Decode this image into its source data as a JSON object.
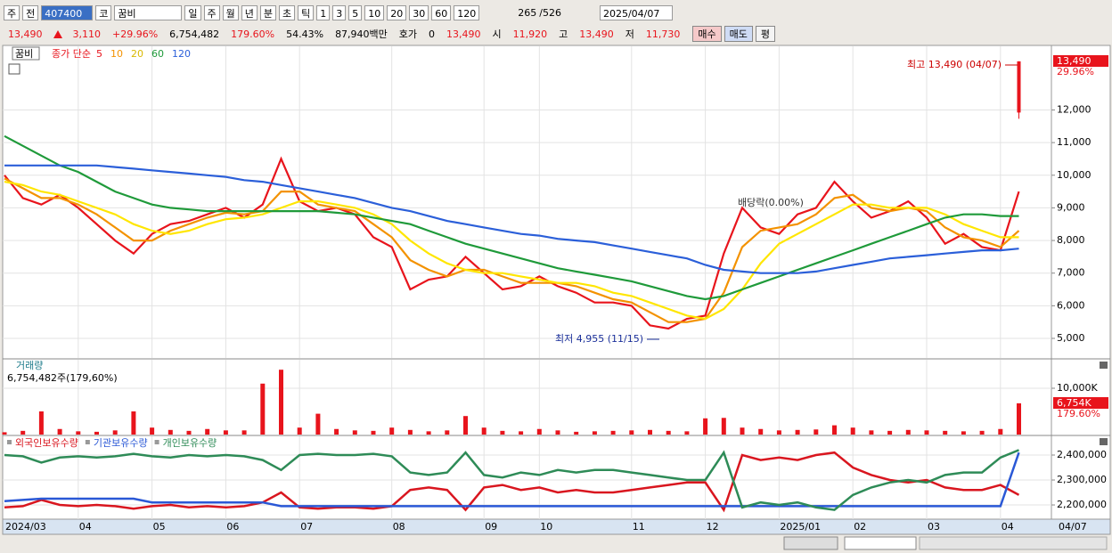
{
  "toolbar": [
    "주",
    "전",
    "407400",
    "코",
    "꿈비",
    "일",
    "주",
    "월",
    "년",
    "분",
    "초",
    "틱",
    "1",
    "3",
    "5",
    "10",
    "20",
    "30",
    "60",
    "120"
  ],
  "counter": [
    "265",
    "/526"
  ],
  "date": "2025/04/07",
  "quote": [
    {
      "text": "13,490",
      "color": "#e8141c"
    },
    {
      "text": "3,110",
      "color": "#e8141c"
    },
    {
      "text": "+29.96%",
      "color": "#e8141c"
    },
    {
      "text": "6,754,482",
      "color": "#000000"
    },
    {
      "text": "179.60%",
      "color": "#e8141c"
    },
    {
      "text": "54.43%",
      "color": "#000000"
    },
    {
      "text": "87,940백만",
      "color": "#000000"
    },
    {
      "text": "호가",
      "color": "#000000"
    },
    {
      "text": "0",
      "color": "#000000"
    },
    {
      "text": "13,490",
      "color": "#e8141c"
    },
    {
      "text": "시",
      "color": "#000000"
    },
    {
      "text": "11,920",
      "color": "#e8141c"
    },
    {
      "text": "고",
      "color": "#000000"
    },
    {
      "text": "13,490",
      "color": "#e8141c"
    },
    {
      "text": "저",
      "color": "#000000"
    },
    {
      "text": "11,730",
      "color": "#e8141c"
    }
  ],
  "order_buttons": [
    "매수",
    "매도",
    "평"
  ],
  "cursor_date": "04/07",
  "chart_data": [
    {
      "type": "line",
      "title": "꿈비",
      "legend_label": "종가 단순",
      "ylim": [
        4400,
        13950
      ],
      "yticks": [
        {
          "value": 5000,
          "label": "5,000"
        },
        {
          "value": 6000,
          "label": "6,000"
        },
        {
          "value": 7000,
          "label": "7,000"
        },
        {
          "value": 8000,
          "label": "8,000"
        },
        {
          "value": 9000,
          "label": "9,000"
        },
        {
          "value": 10000,
          "label": "10,000"
        },
        {
          "value": 11000,
          "label": "11,000"
        },
        {
          "value": 12000,
          "label": "12,000"
        }
      ],
      "grid": true,
      "series": [
        {
          "name": "5",
          "color": "#e8141c",
          "values": [
            10000,
            9300,
            9100,
            9400,
            9000,
            8500,
            8000,
            7600,
            8200,
            8500,
            8600,
            8800,
            9000,
            8700,
            9100,
            10500,
            9200,
            8900,
            9000,
            8800,
            8100,
            7800,
            6500,
            6800,
            6900,
            7500,
            7000,
            6500,
            6600,
            6900,
            6600,
            6400,
            6100,
            6100,
            6000,
            5400,
            5300,
            5600,
            5700,
            7600,
            9000,
            8400,
            8200,
            8800,
            9000,
            9800,
            9200,
            8700,
            8900,
            9200,
            8700,
            7900,
            8200,
            7800,
            7700,
            9500
          ]
        },
        {
          "name": "10",
          "color": "#f39200",
          "values": [
            9900,
            9600,
            9300,
            9300,
            9100,
            8800,
            8400,
            8000,
            8000,
            8300,
            8500,
            8700,
            8850,
            8800,
            8900,
            9500,
            9500,
            9100,
            9000,
            8900,
            8500,
            8100,
            7400,
            7100,
            6900,
            7100,
            7100,
            6900,
            6700,
            6700,
            6700,
            6600,
            6400,
            6200,
            6100,
            5800,
            5500,
            5500,
            5600,
            6400,
            7800,
            8300,
            8400,
            8500,
            8800,
            9300,
            9400,
            9000,
            8900,
            9000,
            8900,
            8400,
            8100,
            8000,
            7800,
            8300
          ]
        },
        {
          "name": "20",
          "color": "#ffe600",
          "values": [
            9800,
            9700,
            9500,
            9400,
            9200,
            9000,
            8800,
            8500,
            8300,
            8200,
            8300,
            8500,
            8650,
            8700,
            8800,
            9000,
            9200,
            9200,
            9100,
            9000,
            8800,
            8500,
            8000,
            7600,
            7300,
            7100,
            7000,
            7000,
            6900,
            6800,
            6700,
            6700,
            6600,
            6400,
            6300,
            6100,
            5900,
            5700,
            5600,
            5900,
            6500,
            7300,
            7900,
            8200,
            8500,
            8800,
            9100,
            9100,
            9000,
            9000,
            9000,
            8800,
            8500,
            8300,
            8100,
            8100
          ]
        },
        {
          "name": "60",
          "color": "#1f9a3a",
          "values": [
            11200,
            10900,
            10600,
            10300,
            10100,
            9800,
            9500,
            9300,
            9100,
            9000,
            8950,
            8900,
            8900,
            8900,
            8900,
            8900,
            8900,
            8900,
            8850,
            8800,
            8700,
            8600,
            8500,
            8300,
            8100,
            7900,
            7750,
            7600,
            7450,
            7300,
            7150,
            7050,
            6950,
            6850,
            6750,
            6600,
            6450,
            6300,
            6200,
            6300,
            6500,
            6700,
            6900,
            7100,
            7300,
            7500,
            7700,
            7900,
            8100,
            8300,
            8500,
            8700,
            8800,
            8800,
            8750,
            8750
          ]
        },
        {
          "name": "120",
          "color": "#2b5fd9",
          "values": [
            10300,
            10300,
            10300,
            10300,
            10300,
            10300,
            10250,
            10200,
            10150,
            10100,
            10050,
            10000,
            9950,
            9850,
            9800,
            9700,
            9600,
            9500,
            9400,
            9300,
            9150,
            9000,
            8900,
            8750,
            8600,
            8500,
            8400,
            8300,
            8200,
            8150,
            8050,
            8000,
            7950,
            7850,
            7750,
            7650,
            7550,
            7450,
            7250,
            7100,
            7050,
            7000,
            7000,
            7000,
            7050,
            7150,
            7250,
            7350,
            7450,
            7500,
            7550,
            7600,
            7650,
            7700,
            7700,
            7750
          ]
        }
      ],
      "last_candle": {
        "open": 11920,
        "high": 13490,
        "low": 11730,
        "close": 13490,
        "color": "#e8141c"
      },
      "price_label": "13,490",
      "change_label": "29.96%",
      "annotations": [
        "최고 13,490 (04/07)",
        "최저 4,955 (11/15)",
        "배당락(0.00%)"
      ]
    },
    {
      "type": "bar",
      "title": "거래량",
      "subtitle": "6,754,482주(179,60%)",
      "color": "#e8141c",
      "ylim": [
        0,
        16150
      ],
      "yticks": [
        {
          "value": 10000,
          "label": "10,000K"
        }
      ],
      "values": [
        500,
        800,
        5000,
        1200,
        700,
        600,
        900,
        5000,
        1500,
        1000,
        800,
        1200,
        900,
        900,
        11000,
        14000,
        1500,
        4500,
        1200,
        900,
        800,
        1500,
        1000,
        700,
        900,
        4000,
        1500,
        800,
        700,
        1200,
        900,
        600,
        700,
        800,
        900,
        1000,
        800,
        700,
        3500,
        3600,
        1500,
        1200,
        900,
        1000,
        1100,
        2000,
        1500,
        900,
        800,
        1000,
        900,
        800,
        700,
        800,
        1200,
        6754
      ],
      "volume_label": "6,754K",
      "ratio_label": "179.60%"
    },
    {
      "type": "line",
      "ylim": [
        2143000,
        2475000
      ],
      "yticks": [
        {
          "value": 2200000,
          "label": "2,200,000"
        },
        {
          "value": 2300000,
          "label": "2,300,000"
        },
        {
          "value": 2400000,
          "label": "2,400,000"
        }
      ],
      "categories": [
        "2024/03",
        null,
        null,
        null,
        "04",
        null,
        null,
        null,
        "05",
        null,
        null,
        null,
        "06",
        null,
        null,
        null,
        "07",
        null,
        null,
        null,
        null,
        "08",
        null,
        null,
        null,
        null,
        "09",
        null,
        null,
        "10",
        null,
        null,
        null,
        null,
        "11",
        null,
        null,
        null,
        "12",
        null,
        null,
        null,
        "2025/01",
        null,
        null,
        null,
        "02",
        null,
        null,
        null,
        "03",
        null,
        null,
        null,
        "04",
        null
      ],
      "series": [
        {
          "name": "외국인보유수량",
          "color": "#d9161f",
          "values": [
            2190000,
            2195000,
            2220000,
            2200000,
            2195000,
            2200000,
            2195000,
            2185000,
            2195000,
            2200000,
            2190000,
            2195000,
            2190000,
            2195000,
            2210000,
            2250000,
            2190000,
            2185000,
            2190000,
            2190000,
            2185000,
            2195000,
            2260000,
            2270000,
            2260000,
            2180000,
            2270000,
            2280000,
            2260000,
            2270000,
            2250000,
            2260000,
            2250000,
            2250000,
            2260000,
            2270000,
            2280000,
            2290000,
            2290000,
            2180000,
            2400000,
            2380000,
            2390000,
            2380000,
            2400000,
            2410000,
            2350000,
            2320000,
            2300000,
            2290000,
            2300000,
            2270000,
            2260000,
            2260000,
            2280000,
            2240000
          ]
        },
        {
          "name": "기관보유수량",
          "color": "#2a58d6",
          "values": [
            2215000,
            2220000,
            2225000,
            2225000,
            2225000,
            2225000,
            2225000,
            2225000,
            2210000,
            2210000,
            2210000,
            2210000,
            2210000,
            2210000,
            2210000,
            2195000,
            2195000,
            2195000,
            2195000,
            2195000,
            2195000,
            2195000,
            2195000,
            2195000,
            2195000,
            2195000,
            2195000,
            2195000,
            2195000,
            2195000,
            2195000,
            2195000,
            2195000,
            2195000,
            2195000,
            2195000,
            2195000,
            2195000,
            2195000,
            2195000,
            2195000,
            2195000,
            2195000,
            2195000,
            2195000,
            2195000,
            2195000,
            2195000,
            2195000,
            2195000,
            2195000,
            2195000,
            2195000,
            2195000,
            2195000,
            2410000
          ]
        },
        {
          "name": "개인보유수량",
          "color": "#2e8b57",
          "values": [
            2400000,
            2395000,
            2370000,
            2390000,
            2395000,
            2390000,
            2395000,
            2405000,
            2395000,
            2390000,
            2400000,
            2395000,
            2400000,
            2395000,
            2380000,
            2340000,
            2400000,
            2405000,
            2400000,
            2400000,
            2405000,
            2395000,
            2330000,
            2320000,
            2330000,
            2410000,
            2320000,
            2310000,
            2330000,
            2320000,
            2340000,
            2330000,
            2340000,
            2340000,
            2330000,
            2320000,
            2310000,
            2300000,
            2300000,
            2410000,
            2190000,
            2210000,
            2200000,
            2210000,
            2190000,
            2180000,
            2240000,
            2270000,
            2290000,
            2300000,
            2290000,
            2320000,
            2330000,
            2330000,
            2390000,
            2420000
          ]
        }
      ]
    }
  ]
}
